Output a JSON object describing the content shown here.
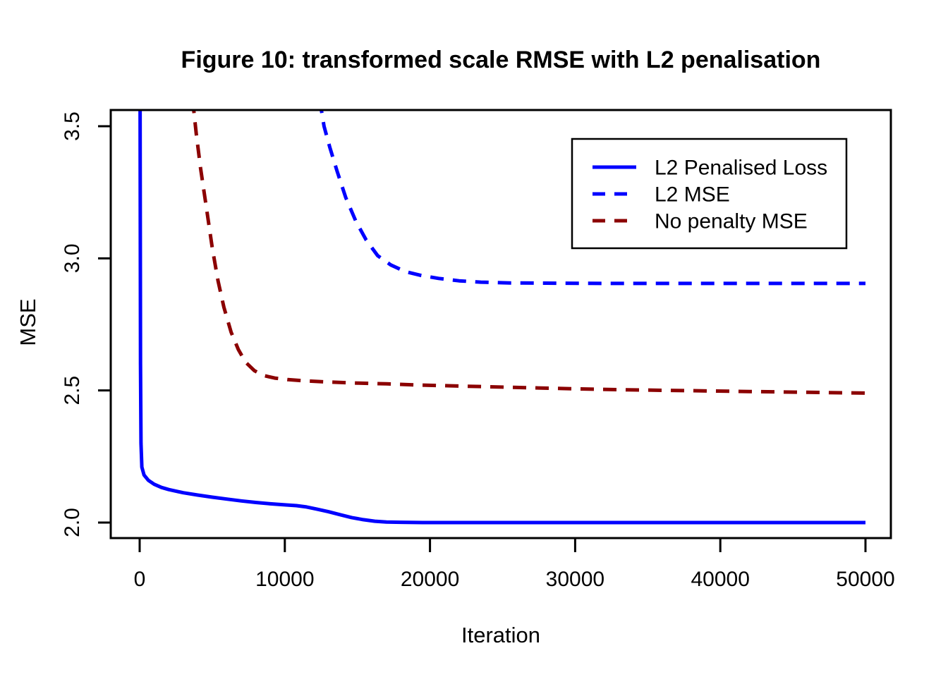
{
  "figure": {
    "title": "Figure 10: transformed scale RMSE with L2 penalisation",
    "xlabel": "Iteration",
    "ylabel": "MSE"
  },
  "colors": {
    "background": "#FFFFFF",
    "axis": "#000000",
    "text": "#000000",
    "blue": "#0000FF",
    "darkred": "#8B0000"
  },
  "chart_data": {
    "type": "line",
    "title": "Figure 10: transformed scale RMSE with L2 penalisation",
    "xlabel": "Iteration",
    "ylabel": "MSE",
    "xlim": [
      -2000,
      52000
    ],
    "ylim": [
      1.94,
      3.56
    ],
    "grid": false,
    "legend_position": "top-right",
    "x_ticks": [
      {
        "value": 0,
        "label": "0"
      },
      {
        "value": 10000,
        "label": "10000"
      },
      {
        "value": 20000,
        "label": "20000"
      },
      {
        "value": 30000,
        "label": "30000"
      },
      {
        "value": 40000,
        "label": "40000"
      },
      {
        "value": 50000,
        "label": "50000"
      }
    ],
    "y_ticks": [
      {
        "value": 2.0,
        "label": "2.0"
      },
      {
        "value": 2.5,
        "label": "2.5"
      },
      {
        "value": 3.0,
        "label": "3.0"
      },
      {
        "value": 3.5,
        "label": "3.5"
      }
    ],
    "series": [
      {
        "name": "L2 Penalised Loss",
        "color": "#0000FF",
        "style": "solid",
        "points": [
          [
            30,
            3.6
          ],
          [
            60,
            2.6
          ],
          [
            90,
            2.3
          ],
          [
            150,
            2.21
          ],
          [
            300,
            2.18
          ],
          [
            600,
            2.16
          ],
          [
            1000,
            2.145
          ],
          [
            1500,
            2.133
          ],
          [
            2000,
            2.125
          ],
          [
            3000,
            2.113
          ],
          [
            4000,
            2.104
          ],
          [
            5000,
            2.096
          ],
          [
            6000,
            2.089
          ],
          [
            7000,
            2.082
          ],
          [
            8000,
            2.076
          ],
          [
            9000,
            2.071
          ],
          [
            10000,
            2.067
          ],
          [
            10800,
            2.064
          ],
          [
            11500,
            2.059
          ],
          [
            12200,
            2.051
          ],
          [
            13000,
            2.041
          ],
          [
            13800,
            2.03
          ],
          [
            14600,
            2.019
          ],
          [
            15400,
            2.011
          ],
          [
            16200,
            2.005
          ],
          [
            17000,
            2.002
          ],
          [
            18000,
            2.001
          ],
          [
            19500,
            2.0
          ],
          [
            25000,
            2.0
          ],
          [
            35000,
            2.0
          ],
          [
            50000,
            2.0
          ]
        ]
      },
      {
        "name": "L2 MSE",
        "color": "#0000FF",
        "style": "dashed",
        "points": [
          [
            12400,
            3.6
          ],
          [
            12700,
            3.5
          ],
          [
            13100,
            3.42
          ],
          [
            13600,
            3.33
          ],
          [
            14200,
            3.23
          ],
          [
            14900,
            3.14
          ],
          [
            15600,
            3.07
          ],
          [
            16400,
            3.01
          ],
          [
            17300,
            2.975
          ],
          [
            18300,
            2.95
          ],
          [
            19400,
            2.935
          ],
          [
            20600,
            2.924
          ],
          [
            22000,
            2.915
          ],
          [
            23500,
            2.91
          ],
          [
            25500,
            2.907
          ],
          [
            28000,
            2.906
          ],
          [
            32000,
            2.905
          ],
          [
            38000,
            2.905
          ],
          [
            44000,
            2.905
          ],
          [
            50000,
            2.905
          ]
        ]
      },
      {
        "name": "No penalty MSE",
        "color": "#8B0000",
        "style": "dashed",
        "points": [
          [
            3650,
            3.6
          ],
          [
            3900,
            3.47
          ],
          [
            4200,
            3.34
          ],
          [
            4600,
            3.19
          ],
          [
            5000,
            3.04
          ],
          [
            5400,
            2.915
          ],
          [
            5800,
            2.815
          ],
          [
            6300,
            2.72
          ],
          [
            6800,
            2.655
          ],
          [
            7300,
            2.607
          ],
          [
            7900,
            2.575
          ],
          [
            8500,
            2.557
          ],
          [
            9300,
            2.547
          ],
          [
            10200,
            2.541
          ],
          [
            11500,
            2.536
          ],
          [
            13000,
            2.532
          ],
          [
            15000,
            2.528
          ],
          [
            17000,
            2.525
          ],
          [
            19000,
            2.521
          ],
          [
            21000,
            2.518
          ],
          [
            24000,
            2.514
          ],
          [
            27000,
            2.51
          ],
          [
            30000,
            2.506
          ],
          [
            34000,
            2.502
          ],
          [
            38000,
            2.499
          ],
          [
            42000,
            2.496
          ],
          [
            46000,
            2.493
          ],
          [
            50000,
            2.49
          ]
        ]
      }
    ]
  }
}
